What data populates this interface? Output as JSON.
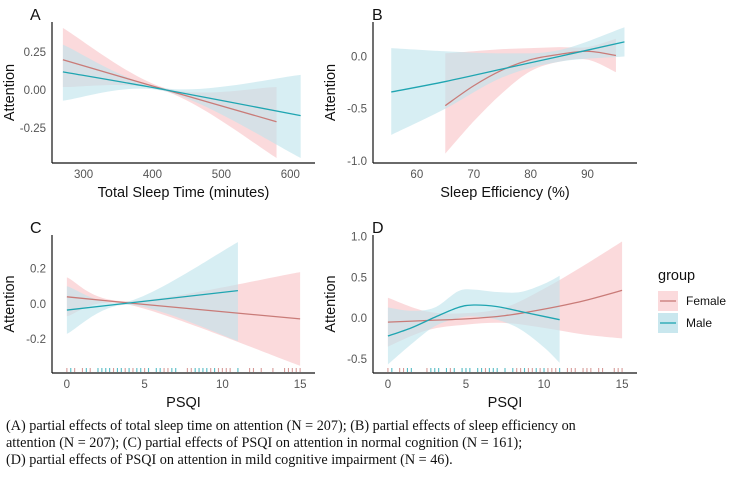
{
  "chart_data": [
    {
      "panel": "A",
      "type": "line",
      "title": "A",
      "xlabel": "Total Sleep Time (minutes)",
      "ylabel": "Attention",
      "xlim": [
        260,
        630
      ],
      "ylim": [
        -0.47,
        0.45
      ],
      "xticks": [
        300,
        400,
        500,
        600
      ],
      "xtick_labels": [
        "300",
        "400",
        "500",
        "600"
      ],
      "yticks": [
        0.25,
        0.0,
        -0.25
      ],
      "ytick_labels": [
        "0.25",
        "0.00",
        "-0.25"
      ],
      "grid": false,
      "rug": false,
      "series": [
        {
          "name": "Female",
          "x": [
            270,
            420,
            580
          ],
          "y": [
            0.2,
            0.0,
            -0.21
          ],
          "lower": [
            0.02,
            -0.01,
            -0.45
          ],
          "upper": [
            0.41,
            0.01,
            0.02
          ]
        },
        {
          "name": "Male",
          "x": [
            270,
            420,
            615
          ],
          "y": [
            0.12,
            0.0,
            -0.17
          ],
          "lower": [
            -0.07,
            -0.01,
            -0.45
          ],
          "upper": [
            0.3,
            0.01,
            0.1
          ]
        }
      ]
    },
    {
      "panel": "B",
      "type": "line",
      "title": "B",
      "xlabel": "Sleep Efficiency (%)",
      "ylabel": "Attention",
      "xlim": [
        53,
        98
      ],
      "ylim": [
        -1.0,
        0.33
      ],
      "xticks": [
        60,
        70,
        80,
        90
      ],
      "xtick_labels": [
        "60",
        "70",
        "80",
        "90"
      ],
      "yticks": [
        0.0,
        -0.5,
        -1.0
      ],
      "ytick_labels": [
        "0.0",
        "-0.5",
        "-1.0"
      ],
      "grid": false,
      "rug": false,
      "series": [
        {
          "name": "Female",
          "x": [
            65,
            70,
            75,
            80,
            85,
            90,
            95
          ],
          "y": [
            -0.47,
            -0.28,
            -0.13,
            -0.03,
            0.02,
            0.05,
            0.01
          ],
          "lower": [
            -0.93,
            -0.62,
            -0.35,
            -0.14,
            -0.05,
            -0.03,
            -0.15
          ],
          "upper": [
            0.03,
            0.05,
            0.07,
            0.08,
            0.09,
            0.09,
            0.17
          ]
        },
        {
          "name": "Male",
          "x": [
            55.5,
            65,
            75,
            85,
            96.5
          ],
          "y": [
            -0.34,
            -0.24,
            -0.12,
            0.0,
            0.14
          ],
          "lower": [
            -0.75,
            -0.5,
            -0.2,
            -0.05,
            0.0
          ],
          "upper": [
            0.08,
            0.05,
            0.03,
            0.06,
            0.28
          ]
        }
      ]
    },
    {
      "panel": "C",
      "type": "line",
      "title": "C",
      "xlabel": "PSQI",
      "ylabel": "Attention",
      "xlim": [
        -0.7,
        15.7
      ],
      "ylim": [
        -0.38,
        0.39
      ],
      "xticks": [
        0,
        5,
        10,
        15
      ],
      "xtick_labels": [
        "0",
        "5",
        "10",
        "15"
      ],
      "yticks": [
        0.2,
        0.0,
        -0.2
      ],
      "ytick_labels": [
        "0.2",
        "0.0",
        "-0.2"
      ],
      "grid": false,
      "rug": true,
      "series": [
        {
          "name": "Female",
          "x": [
            0,
            4,
            15
          ],
          "y": [
            0.04,
            0.005,
            -0.085
          ],
          "lower": [
            -0.07,
            -0.005,
            -0.35
          ],
          "upper": [
            0.15,
            0.015,
            0.18
          ]
        },
        {
          "name": "Male",
          "x": [
            0,
            4,
            11
          ],
          "y": [
            -0.035,
            0.005,
            0.075
          ],
          "lower": [
            -0.17,
            -0.005,
            -0.21
          ],
          "upper": [
            0.1,
            0.015,
            0.35
          ]
        }
      ]
    },
    {
      "panel": "D",
      "type": "line",
      "title": "D",
      "xlabel": "PSQI",
      "ylabel": "Attention",
      "xlim": [
        -0.7,
        15.7
      ],
      "ylim": [
        -0.65,
        1.02
      ],
      "xticks": [
        0,
        5,
        10,
        15
      ],
      "xtick_labels": [
        "0",
        "5",
        "10",
        "15"
      ],
      "yticks": [
        1.0,
        0.5,
        0.0,
        -0.5
      ],
      "ytick_labels": [
        "1.0",
        "0.5",
        "0.0",
        "-0.5"
      ],
      "grid": false,
      "rug": true,
      "series": [
        {
          "name": "Female",
          "x": [
            0,
            2.5,
            5,
            7.5,
            10,
            12.5,
            15
          ],
          "y": [
            -0.05,
            -0.03,
            -0.01,
            0.03,
            0.11,
            0.21,
            0.34
          ],
          "lower": [
            -0.35,
            -0.15,
            -0.08,
            -0.06,
            -0.12,
            -0.2,
            -0.25
          ],
          "upper": [
            0.25,
            0.08,
            0.06,
            0.13,
            0.36,
            0.64,
            0.94
          ]
        },
        {
          "name": "Male",
          "x": [
            0,
            1.5,
            3,
            4.5,
            5.5,
            7,
            8.5,
            10,
            11
          ],
          "y": [
            -0.22,
            -0.12,
            0.01,
            0.13,
            0.16,
            0.14,
            0.08,
            0.02,
            -0.02
          ],
          "lower": [
            -0.57,
            -0.32,
            -0.1,
            0.0,
            0.02,
            -0.02,
            -0.14,
            -0.36,
            -0.55
          ],
          "upper": [
            0.13,
            0.09,
            0.13,
            0.33,
            0.35,
            0.32,
            0.32,
            0.42,
            0.52
          ]
        }
      ]
    }
  ],
  "legend": {
    "title": "group",
    "placement": "right",
    "items": [
      {
        "name": "Female",
        "line_color": "#C97B78",
        "fill_color": "#FAD4D6"
      },
      {
        "name": "Male",
        "line_color": "#1FA5B1",
        "fill_color": "#BFE3EB"
      }
    ]
  },
  "caption": {
    "lines": [
      "(A) partial effects of total sleep time on attention (N = 207); (B) partial effects of sleep efficiency on",
      "attention (N = 207); (C) partial effects of PSQI on attention in normal cognition (N  = 161);",
      "(D) partial effects of PSQI on attention in mild cognitive impairment (N = 46)."
    ]
  }
}
